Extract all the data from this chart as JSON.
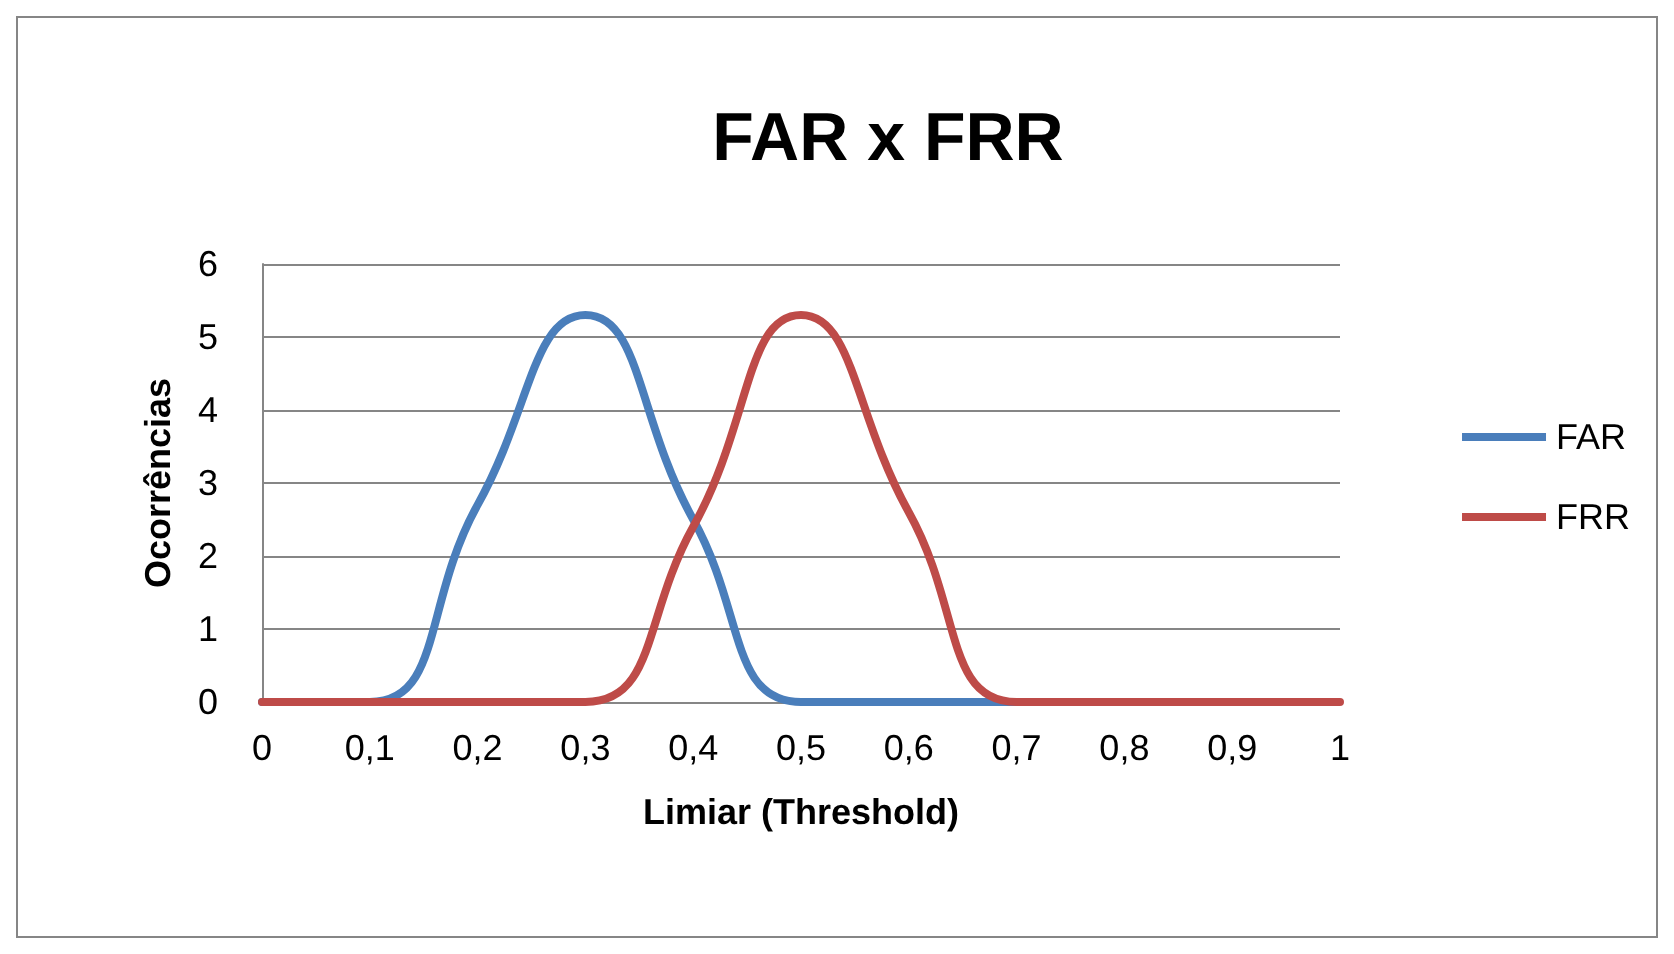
{
  "chart_data": {
    "type": "line",
    "title": "FAR x FRR",
    "xlabel": "Limiar (Threshold)",
    "ylabel": "Ocorrências",
    "x": [
      0,
      0.1,
      0.2,
      0.3,
      0.4,
      0.5,
      0.6,
      0.7,
      0.8,
      0.9,
      1
    ],
    "series": [
      {
        "name": "FAR",
        "color": "#4a7ebb",
        "values": [
          0,
          0,
          2.7,
          5.3,
          2.5,
          0,
          0,
          0,
          0,
          null,
          null
        ]
      },
      {
        "name": "FRR",
        "color": "#be4b48",
        "values": [
          0,
          0,
          0,
          0,
          2.4,
          5.3,
          2.6,
          0,
          0,
          0,
          0
        ]
      }
    ],
    "xlim": [
      0,
      1
    ],
    "xticks": [
      {
        "value": 0,
        "label": "0"
      },
      {
        "value": 0.1,
        "label": "0,1"
      },
      {
        "value": 0.2,
        "label": "0,2"
      },
      {
        "value": 0.3,
        "label": "0,3"
      },
      {
        "value": 0.4,
        "label": "0,4"
      },
      {
        "value": 0.5,
        "label": "0,5"
      },
      {
        "value": 0.6,
        "label": "0,6"
      },
      {
        "value": 0.7,
        "label": "0,7"
      },
      {
        "value": 0.8,
        "label": "0,8"
      },
      {
        "value": 0.9,
        "label": "0,9"
      },
      {
        "value": 1,
        "label": "1"
      }
    ],
    "ylim": [
      0,
      6
    ],
    "yticks": [
      0,
      1,
      2,
      3,
      4,
      5,
      6
    ],
    "grid": "y",
    "legend": "right",
    "marker": "none",
    "line_style": "solid"
  }
}
